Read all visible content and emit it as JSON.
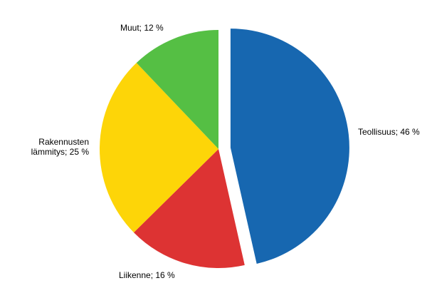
{
  "chart_data": {
    "type": "pie",
    "title": "",
    "slices": [
      {
        "label": "Teollisuus",
        "label_lines": [
          "Teollisuus; 46 %"
        ],
        "value": 46,
        "color": "#1767b0",
        "exploded": true
      },
      {
        "label": "Liikenne",
        "label_lines": [
          "Liikenne; 16 %"
        ],
        "value": 16,
        "color": "#dd3333",
        "exploded": false
      },
      {
        "label": "Rakennusten lämmitys",
        "label_lines": [
          "Rakennusten",
          "lämmitys; 25 %"
        ],
        "value": 25,
        "color": "#fdd508",
        "exploded": false
      },
      {
        "label": "Muut",
        "label_lines": [
          "Muut; 12 %"
        ],
        "value": 12,
        "color": "#55bf44",
        "exploded": false
      }
    ],
    "unit": "%",
    "start_angle": "12 o'clock",
    "direction": "clockwise",
    "legend": "none"
  }
}
